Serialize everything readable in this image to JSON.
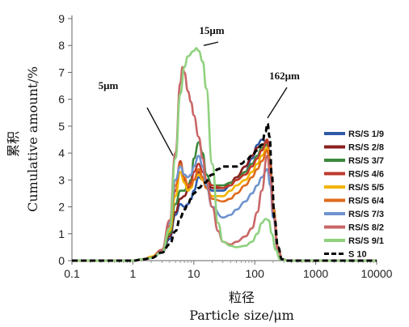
{
  "chart_data": {
    "type": "line",
    "xlabel_cn": "粒径",
    "xlabel": "Particle size/μm",
    "ylabel_cn": "累积",
    "ylabel": "Cumulative amount/%",
    "xscale": "log",
    "xlim": [
      0.1,
      10000
    ],
    "ylim": [
      0,
      9
    ],
    "x_ticks": [
      0.1,
      1,
      10,
      100,
      1000,
      10000
    ],
    "x_tick_labels": [
      "0.1",
      "1",
      "10",
      "100",
      "1000",
      "10000"
    ],
    "y_ticks": [
      0,
      1,
      2,
      3,
      4,
      5,
      6,
      7,
      8,
      9
    ],
    "y_tick_labels": [
      "0",
      "1",
      "2",
      "3",
      "4",
      "5",
      "6",
      "7",
      "8",
      "9"
    ],
    "legend_position": "right",
    "annotations": [
      {
        "text": "5μm",
        "point_to": [
          5,
          3.6
        ],
        "placement": "upper-left"
      },
      {
        "text": "15μm",
        "point_to": [
          15,
          7.5
        ],
        "placement": "top"
      },
      {
        "text": "162μm",
        "point_to": [
          162,
          5.1
        ],
        "placement": "top-right"
      }
    ],
    "series": [
      {
        "name": "RS/S 1/9",
        "color": "#2e5aa8",
        "dash": false,
        "points": [
          [
            0.1,
            0
          ],
          [
            1,
            0
          ],
          [
            1.5,
            0.05
          ],
          [
            2,
            0.1
          ],
          [
            3,
            0.3
          ],
          [
            4,
            0.8
          ],
          [
            5,
            1.7
          ],
          [
            6,
            2.1
          ],
          [
            7,
            2.0
          ],
          [
            8,
            2.1
          ],
          [
            9,
            2.3
          ],
          [
            10,
            2.6
          ],
          [
            12,
            3.1
          ],
          [
            14,
            3.0
          ],
          [
            16,
            2.8
          ],
          [
            20,
            2.6
          ],
          [
            30,
            2.6
          ],
          [
            40,
            2.8
          ],
          [
            50,
            3.0
          ],
          [
            70,
            3.3
          ],
          [
            90,
            3.8
          ],
          [
            110,
            4.3
          ],
          [
            130,
            4.5
          ],
          [
            160,
            4.4
          ],
          [
            180,
            3.5
          ],
          [
            200,
            2.0
          ],
          [
            240,
            0.5
          ],
          [
            280,
            0.05
          ],
          [
            350,
            0
          ],
          [
            10000,
            0
          ]
        ]
      },
      {
        "name": "RS/S 2/8",
        "color": "#8a1f1f",
        "dash": false,
        "points": [
          [
            0.1,
            0
          ],
          [
            1,
            0
          ],
          [
            1.5,
            0.05
          ],
          [
            2,
            0.1
          ],
          [
            3,
            0.3
          ],
          [
            4,
            0.9
          ],
          [
            5,
            1.8
          ],
          [
            6,
            2.3
          ],
          [
            7,
            2.4
          ],
          [
            8,
            2.6
          ],
          [
            9,
            2.8
          ],
          [
            10,
            3.0
          ],
          [
            12,
            3.3
          ],
          [
            14,
            3.1
          ],
          [
            16,
            2.9
          ],
          [
            20,
            2.7
          ],
          [
            30,
            2.7
          ],
          [
            40,
            2.9
          ],
          [
            50,
            3.1
          ],
          [
            70,
            3.5
          ],
          [
            90,
            3.9
          ],
          [
            110,
            4.2
          ],
          [
            130,
            4.3
          ],
          [
            160,
            4.4
          ],
          [
            180,
            3.6
          ],
          [
            200,
            2.0
          ],
          [
            240,
            0.5
          ],
          [
            280,
            0.05
          ],
          [
            350,
            0
          ],
          [
            10000,
            0
          ]
        ]
      },
      {
        "name": "RS/S 3/7",
        "color": "#3c8a3c",
        "dash": false,
        "points": [
          [
            0.1,
            0
          ],
          [
            1,
            0
          ],
          [
            1.5,
            0.05
          ],
          [
            2,
            0.1
          ],
          [
            3,
            0.3
          ],
          [
            4,
            1.0
          ],
          [
            5,
            2.1
          ],
          [
            6,
            2.6
          ],
          [
            7,
            2.6
          ],
          [
            8,
            2.8
          ],
          [
            9,
            3.0
          ],
          [
            10,
            3.8
          ],
          [
            12,
            4.4
          ],
          [
            14,
            4.0
          ],
          [
            16,
            3.2
          ],
          [
            20,
            2.8
          ],
          [
            30,
            2.8
          ],
          [
            40,
            2.9
          ],
          [
            50,
            3.0
          ],
          [
            70,
            3.3
          ],
          [
            90,
            3.6
          ],
          [
            110,
            3.9
          ],
          [
            130,
            4.2
          ],
          [
            160,
            4.3
          ],
          [
            180,
            3.5
          ],
          [
            200,
            2.0
          ],
          [
            240,
            0.5
          ],
          [
            280,
            0.05
          ],
          [
            350,
            0
          ],
          [
            10000,
            0
          ]
        ]
      },
      {
        "name": "RS/S 4/6",
        "color": "#c0392b",
        "dash": false,
        "points": [
          [
            0.1,
            0
          ],
          [
            1,
            0
          ],
          [
            1.5,
            0.05
          ],
          [
            2,
            0.1
          ],
          [
            3,
            0.4
          ],
          [
            4,
            1.2
          ],
          [
            5,
            2.6
          ],
          [
            6,
            3.7
          ],
          [
            7,
            3.0
          ],
          [
            8,
            2.7
          ],
          [
            9,
            2.9
          ],
          [
            10,
            3.3
          ],
          [
            12,
            3.6
          ],
          [
            14,
            3.3
          ],
          [
            16,
            3.0
          ],
          [
            20,
            2.8
          ],
          [
            30,
            2.7
          ],
          [
            40,
            2.8
          ],
          [
            50,
            3.0
          ],
          [
            70,
            3.2
          ],
          [
            90,
            3.5
          ],
          [
            110,
            3.8
          ],
          [
            130,
            4.1
          ],
          [
            160,
            4.5
          ],
          [
            180,
            3.6
          ],
          [
            200,
            2.0
          ],
          [
            240,
            0.5
          ],
          [
            280,
            0.05
          ],
          [
            350,
            0
          ],
          [
            10000,
            0
          ]
        ]
      },
      {
        "name": "RS/S 5/5",
        "color": "#f2b400",
        "dash": false,
        "points": [
          [
            0.1,
            0
          ],
          [
            1,
            0
          ],
          [
            1.5,
            0.05
          ],
          [
            2,
            0.15
          ],
          [
            3,
            0.4
          ],
          [
            4,
            1.1
          ],
          [
            5,
            2.4
          ],
          [
            6,
            3.3
          ],
          [
            7,
            2.9
          ],
          [
            8,
            2.6
          ],
          [
            9,
            2.7
          ],
          [
            10,
            3.0
          ],
          [
            12,
            3.2
          ],
          [
            14,
            3.0
          ],
          [
            16,
            2.7
          ],
          [
            20,
            2.4
          ],
          [
            30,
            2.4
          ],
          [
            40,
            2.6
          ],
          [
            50,
            2.8
          ],
          [
            70,
            3.0
          ],
          [
            90,
            3.3
          ],
          [
            110,
            3.6
          ],
          [
            130,
            3.9
          ],
          [
            160,
            4.2
          ],
          [
            180,
            3.4
          ],
          [
            200,
            1.9
          ],
          [
            240,
            0.5
          ],
          [
            280,
            0.05
          ],
          [
            350,
            0
          ],
          [
            10000,
            0
          ]
        ]
      },
      {
        "name": "RS/S 6/4",
        "color": "#e06a1c",
        "dash": false,
        "points": [
          [
            0.1,
            0
          ],
          [
            1,
            0
          ],
          [
            1.5,
            0.05
          ],
          [
            2,
            0.1
          ],
          [
            3,
            0.4
          ],
          [
            4,
            1.3
          ],
          [
            5,
            2.8
          ],
          [
            6,
            3.6
          ],
          [
            7,
            3.1
          ],
          [
            8,
            2.8
          ],
          [
            9,
            2.8
          ],
          [
            10,
            3.0
          ],
          [
            12,
            3.4
          ],
          [
            14,
            3.1
          ],
          [
            16,
            2.7
          ],
          [
            20,
            2.3
          ],
          [
            30,
            2.2
          ],
          [
            40,
            2.3
          ],
          [
            50,
            2.5
          ],
          [
            70,
            2.8
          ],
          [
            90,
            3.1
          ],
          [
            110,
            3.4
          ],
          [
            130,
            3.7
          ],
          [
            160,
            4.1
          ],
          [
            180,
            3.3
          ],
          [
            200,
            1.8
          ],
          [
            240,
            0.5
          ],
          [
            280,
            0.05
          ],
          [
            350,
            0
          ],
          [
            10000,
            0
          ]
        ]
      },
      {
        "name": "RS/S 7/3",
        "color": "#6f93cf",
        "dash": false,
        "points": [
          [
            0.1,
            0
          ],
          [
            1,
            0
          ],
          [
            1.5,
            0.05
          ],
          [
            2,
            0.1
          ],
          [
            3,
            0.4
          ],
          [
            4,
            1.4
          ],
          [
            5,
            3.0
          ],
          [
            6,
            3.5
          ],
          [
            7,
            3.2
          ],
          [
            8,
            3.1
          ],
          [
            9,
            3.2
          ],
          [
            10,
            3.5
          ],
          [
            12,
            3.9
          ],
          [
            14,
            3.5
          ],
          [
            16,
            2.8
          ],
          [
            20,
            2.0
          ],
          [
            30,
            1.6
          ],
          [
            40,
            1.7
          ],
          [
            50,
            1.9
          ],
          [
            70,
            2.2
          ],
          [
            90,
            2.5
          ],
          [
            110,
            2.8
          ],
          [
            130,
            3.1
          ],
          [
            160,
            3.4
          ],
          [
            180,
            2.8
          ],
          [
            200,
            1.6
          ],
          [
            240,
            0.4
          ],
          [
            280,
            0.05
          ],
          [
            350,
            0
          ],
          [
            10000,
            0
          ]
        ]
      },
      {
        "name": "RS/S 8/2",
        "color": "#c96666",
        "dash": false,
        "points": [
          [
            0.1,
            0
          ],
          [
            1,
            0
          ],
          [
            1.5,
            0.05
          ],
          [
            2,
            0.1
          ],
          [
            3,
            0.4
          ],
          [
            4,
            1.5
          ],
          [
            5,
            4.0
          ],
          [
            6,
            6.6
          ],
          [
            6.5,
            7.2
          ],
          [
            7,
            7.0
          ],
          [
            8,
            6.3
          ],
          [
            9,
            5.9
          ],
          [
            10,
            5.4
          ],
          [
            12,
            4.6
          ],
          [
            14,
            3.8
          ],
          [
            16,
            3.0
          ],
          [
            20,
            2.0
          ],
          [
            25,
            1.1
          ],
          [
            30,
            0.7
          ],
          [
            40,
            0.6
          ],
          [
            50,
            0.7
          ],
          [
            70,
            0.9
          ],
          [
            90,
            1.2
          ],
          [
            110,
            1.8
          ],
          [
            130,
            2.6
          ],
          [
            160,
            3.9
          ],
          [
            180,
            3.2
          ],
          [
            200,
            1.8
          ],
          [
            240,
            0.4
          ],
          [
            280,
            0.05
          ],
          [
            350,
            0
          ],
          [
            10000,
            0
          ]
        ]
      },
      {
        "name": "RS/S 9/1",
        "color": "#8fd17e",
        "dash": false,
        "points": [
          [
            0.1,
            0
          ],
          [
            1,
            0
          ],
          [
            1.5,
            0.05
          ],
          [
            2,
            0.1
          ],
          [
            3,
            0.3
          ],
          [
            4,
            1.2
          ],
          [
            5,
            3.8
          ],
          [
            6,
            6.2
          ],
          [
            7,
            7.2
          ],
          [
            8,
            7.6
          ],
          [
            10,
            7.8
          ],
          [
            11,
            7.9
          ],
          [
            12,
            7.8
          ],
          [
            14,
            7.4
          ],
          [
            16,
            6.4
          ],
          [
            20,
            3.6
          ],
          [
            25,
            1.4
          ],
          [
            30,
            0.7
          ],
          [
            40,
            0.55
          ],
          [
            50,
            0.5
          ],
          [
            70,
            0.55
          ],
          [
            90,
            0.7
          ],
          [
            110,
            1.0
          ],
          [
            130,
            1.4
          ],
          [
            150,
            1.55
          ],
          [
            170,
            1.5
          ],
          [
            190,
            1.0
          ],
          [
            220,
            0.4
          ],
          [
            260,
            0.05
          ],
          [
            350,
            0
          ],
          [
            10000,
            0
          ]
        ]
      },
      {
        "name": "S 10",
        "color": "#000000",
        "dash": true,
        "points": [
          [
            0.1,
            0
          ],
          [
            1,
            0
          ],
          [
            1.5,
            0.05
          ],
          [
            2,
            0.1
          ],
          [
            3,
            0.3
          ],
          [
            4,
            0.6
          ],
          [
            5,
            1.1
          ],
          [
            6,
            1.6
          ],
          [
            7,
            1.9
          ],
          [
            8,
            2.1
          ],
          [
            9,
            2.3
          ],
          [
            10,
            2.5
          ],
          [
            12,
            2.7
          ],
          [
            15,
            2.9
          ],
          [
            20,
            3.2
          ],
          [
            25,
            3.4
          ],
          [
            30,
            3.5
          ],
          [
            40,
            3.5
          ],
          [
            50,
            3.5
          ],
          [
            60,
            3.6
          ],
          [
            70,
            3.7
          ],
          [
            90,
            3.9
          ],
          [
            110,
            4.1
          ],
          [
            130,
            4.3
          ],
          [
            150,
            4.8
          ],
          [
            162,
            5.1
          ],
          [
            175,
            4.6
          ],
          [
            190,
            3.2
          ],
          [
            210,
            1.6
          ],
          [
            240,
            0.5
          ],
          [
            280,
            0.05
          ],
          [
            350,
            0
          ],
          [
            10000,
            0
          ]
        ]
      }
    ]
  }
}
